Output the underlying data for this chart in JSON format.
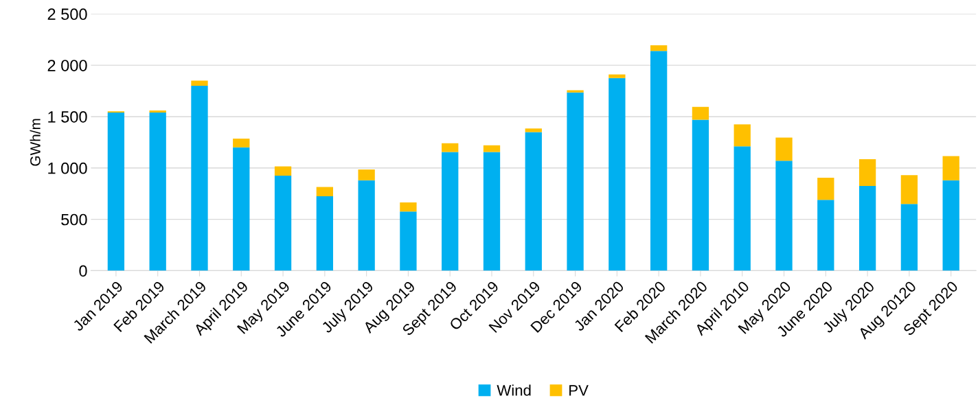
{
  "chart_data": {
    "type": "bar",
    "stacked": true,
    "ylabel": "GWh/m",
    "categories": [
      "Jan 2019",
      "Feb 2019",
      "March 2019",
      "April 2019",
      "May 2019",
      "June 2019",
      "July 2019",
      "Aug 2019",
      "Sept 2019",
      "Oct 2019",
      "Nov 2019",
      "Dec 2019",
      "Jan 2020",
      "Feb 2020",
      "March 2020",
      "April 2010",
      "May 2020",
      "June 2020",
      "July 2020",
      "Aug 20120",
      "Sept 2020"
    ],
    "series": [
      {
        "name": "Wind",
        "color": "#00b0f0",
        "values": [
          1540,
          1540,
          1800,
          1200,
          925,
          725,
          880,
          575,
          1155,
          1155,
          1350,
          1735,
          1875,
          2140,
          1470,
          1210,
          1070,
          690,
          825,
          650,
          880
        ]
      },
      {
        "name": "PV",
        "color": "#ffc000",
        "values": [
          12,
          20,
          50,
          85,
          90,
          90,
          105,
          90,
          85,
          65,
          35,
          22,
          35,
          55,
          125,
          215,
          225,
          215,
          260,
          280,
          235
        ]
      }
    ],
    "ylim": [
      0,
      2500
    ],
    "yticks": [
      0,
      {
        "value": 500,
        "label": "500"
      },
      {
        "value": 1000,
        "label": "1 000"
      },
      {
        "value": 1500,
        "label": "1 500"
      },
      {
        "value": 2000,
        "label": "2 000"
      },
      {
        "value": 2500,
        "label": "2 500"
      }
    ],
    "grid": "y",
    "legend": "bottom"
  }
}
